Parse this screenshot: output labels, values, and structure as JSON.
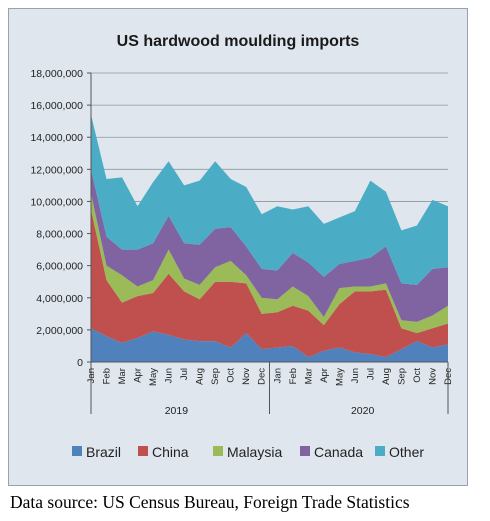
{
  "chart_data": {
    "type": "area",
    "stacked": true,
    "title": "US hardwood moulding imports",
    "x": [
      "Jan",
      "Feb",
      "Mar",
      "Apr",
      "May",
      "Jun",
      "Jul",
      "Aug",
      "Sep",
      "Oct",
      "Nov",
      "Dec",
      "Jan",
      "Feb",
      "Mar",
      "Apr",
      "May",
      "Jun",
      "Jul",
      "Aug",
      "Sep",
      "Oct",
      "Nov",
      "Dec"
    ],
    "x_groups": [
      {
        "label": "2019",
        "start": 0,
        "end": 11
      },
      {
        "label": "2020",
        "start": 12,
        "end": 23
      }
    ],
    "tick_labels": [
      "Jan",
      "Feb",
      "Mar",
      "Apr",
      "May",
      "Jun",
      "Jul",
      "Aug",
      "Sep",
      "Oct",
      "Nov",
      "Dec",
      "Jan",
      "Feb",
      "Mar",
      "Apr",
      "May",
      "Jun",
      "Jul",
      "Aug",
      "Sep",
      "Oct",
      "Nov",
      "Dec"
    ],
    "ylim": [
      0,
      18000000
    ],
    "yticks": [
      0,
      2000000,
      4000000,
      6000000,
      8000000,
      10000000,
      12000000,
      14000000,
      16000000,
      18000000
    ],
    "ytick_labels": [
      "0",
      "2,000,000",
      "4,000,000",
      "6,000,000",
      "8,000,000",
      "10,000,000",
      "12,000,000",
      "14,000,000",
      "16,000,000",
      "18,000,000"
    ],
    "grid": "horizontal",
    "legend_position": "bottom",
    "series": [
      {
        "name": "Brazil",
        "color": "#4f81bd",
        "values": [
          2100000,
          1600000,
          1200000,
          1500000,
          1900000,
          1700000,
          1400000,
          1300000,
          1300000,
          900000,
          1800000,
          800000,
          900000,
          1000000,
          300000,
          700000,
          900000,
          600000,
          500000,
          300000,
          800000,
          1300000,
          900000,
          1100000
        ]
      },
      {
        "name": "China",
        "color": "#c0504d",
        "values": [
          7400000,
          3500000,
          2500000,
          2600000,
          2400000,
          3800000,
          3000000,
          2600000,
          3700000,
          4100000,
          3100000,
          2200000,
          2200000,
          2500000,
          2900000,
          1600000,
          2700000,
          3800000,
          3900000,
          4200000,
          1300000,
          500000,
          1200000,
          1300000
        ]
      },
      {
        "name": "Malaysia",
        "color": "#9bbb59",
        "values": [
          1000000,
          900000,
          1700000,
          600000,
          800000,
          1500000,
          800000,
          900000,
          900000,
          1300000,
          500000,
          1000000,
          800000,
          1200000,
          900000,
          500000,
          1000000,
          300000,
          300000,
          400000,
          500000,
          700000,
          800000,
          1100000
        ]
      },
      {
        "name": "Canada",
        "color": "#8064a2",
        "values": [
          1500000,
          1800000,
          1600000,
          2300000,
          2300000,
          2100000,
          2200000,
          2500000,
          2400000,
          2100000,
          1800000,
          1800000,
          1800000,
          2100000,
          2100000,
          2500000,
          1500000,
          1600000,
          1800000,
          2300000,
          2300000,
          2300000,
          2900000,
          2400000
        ]
      },
      {
        "name": "Other",
        "color": "#4bacc6",
        "values": [
          3400000,
          3600000,
          4500000,
          2700000,
          3800000,
          3400000,
          3600000,
          4000000,
          4200000,
          3000000,
          3700000,
          3400000,
          4000000,
          2700000,
          3500000,
          3300000,
          2900000,
          3100000,
          4800000,
          3400000,
          3300000,
          3700000,
          4300000,
          3800000
        ]
      }
    ]
  },
  "source_note": "Data source: US Census Bureau, Foreign Trade Statistics"
}
